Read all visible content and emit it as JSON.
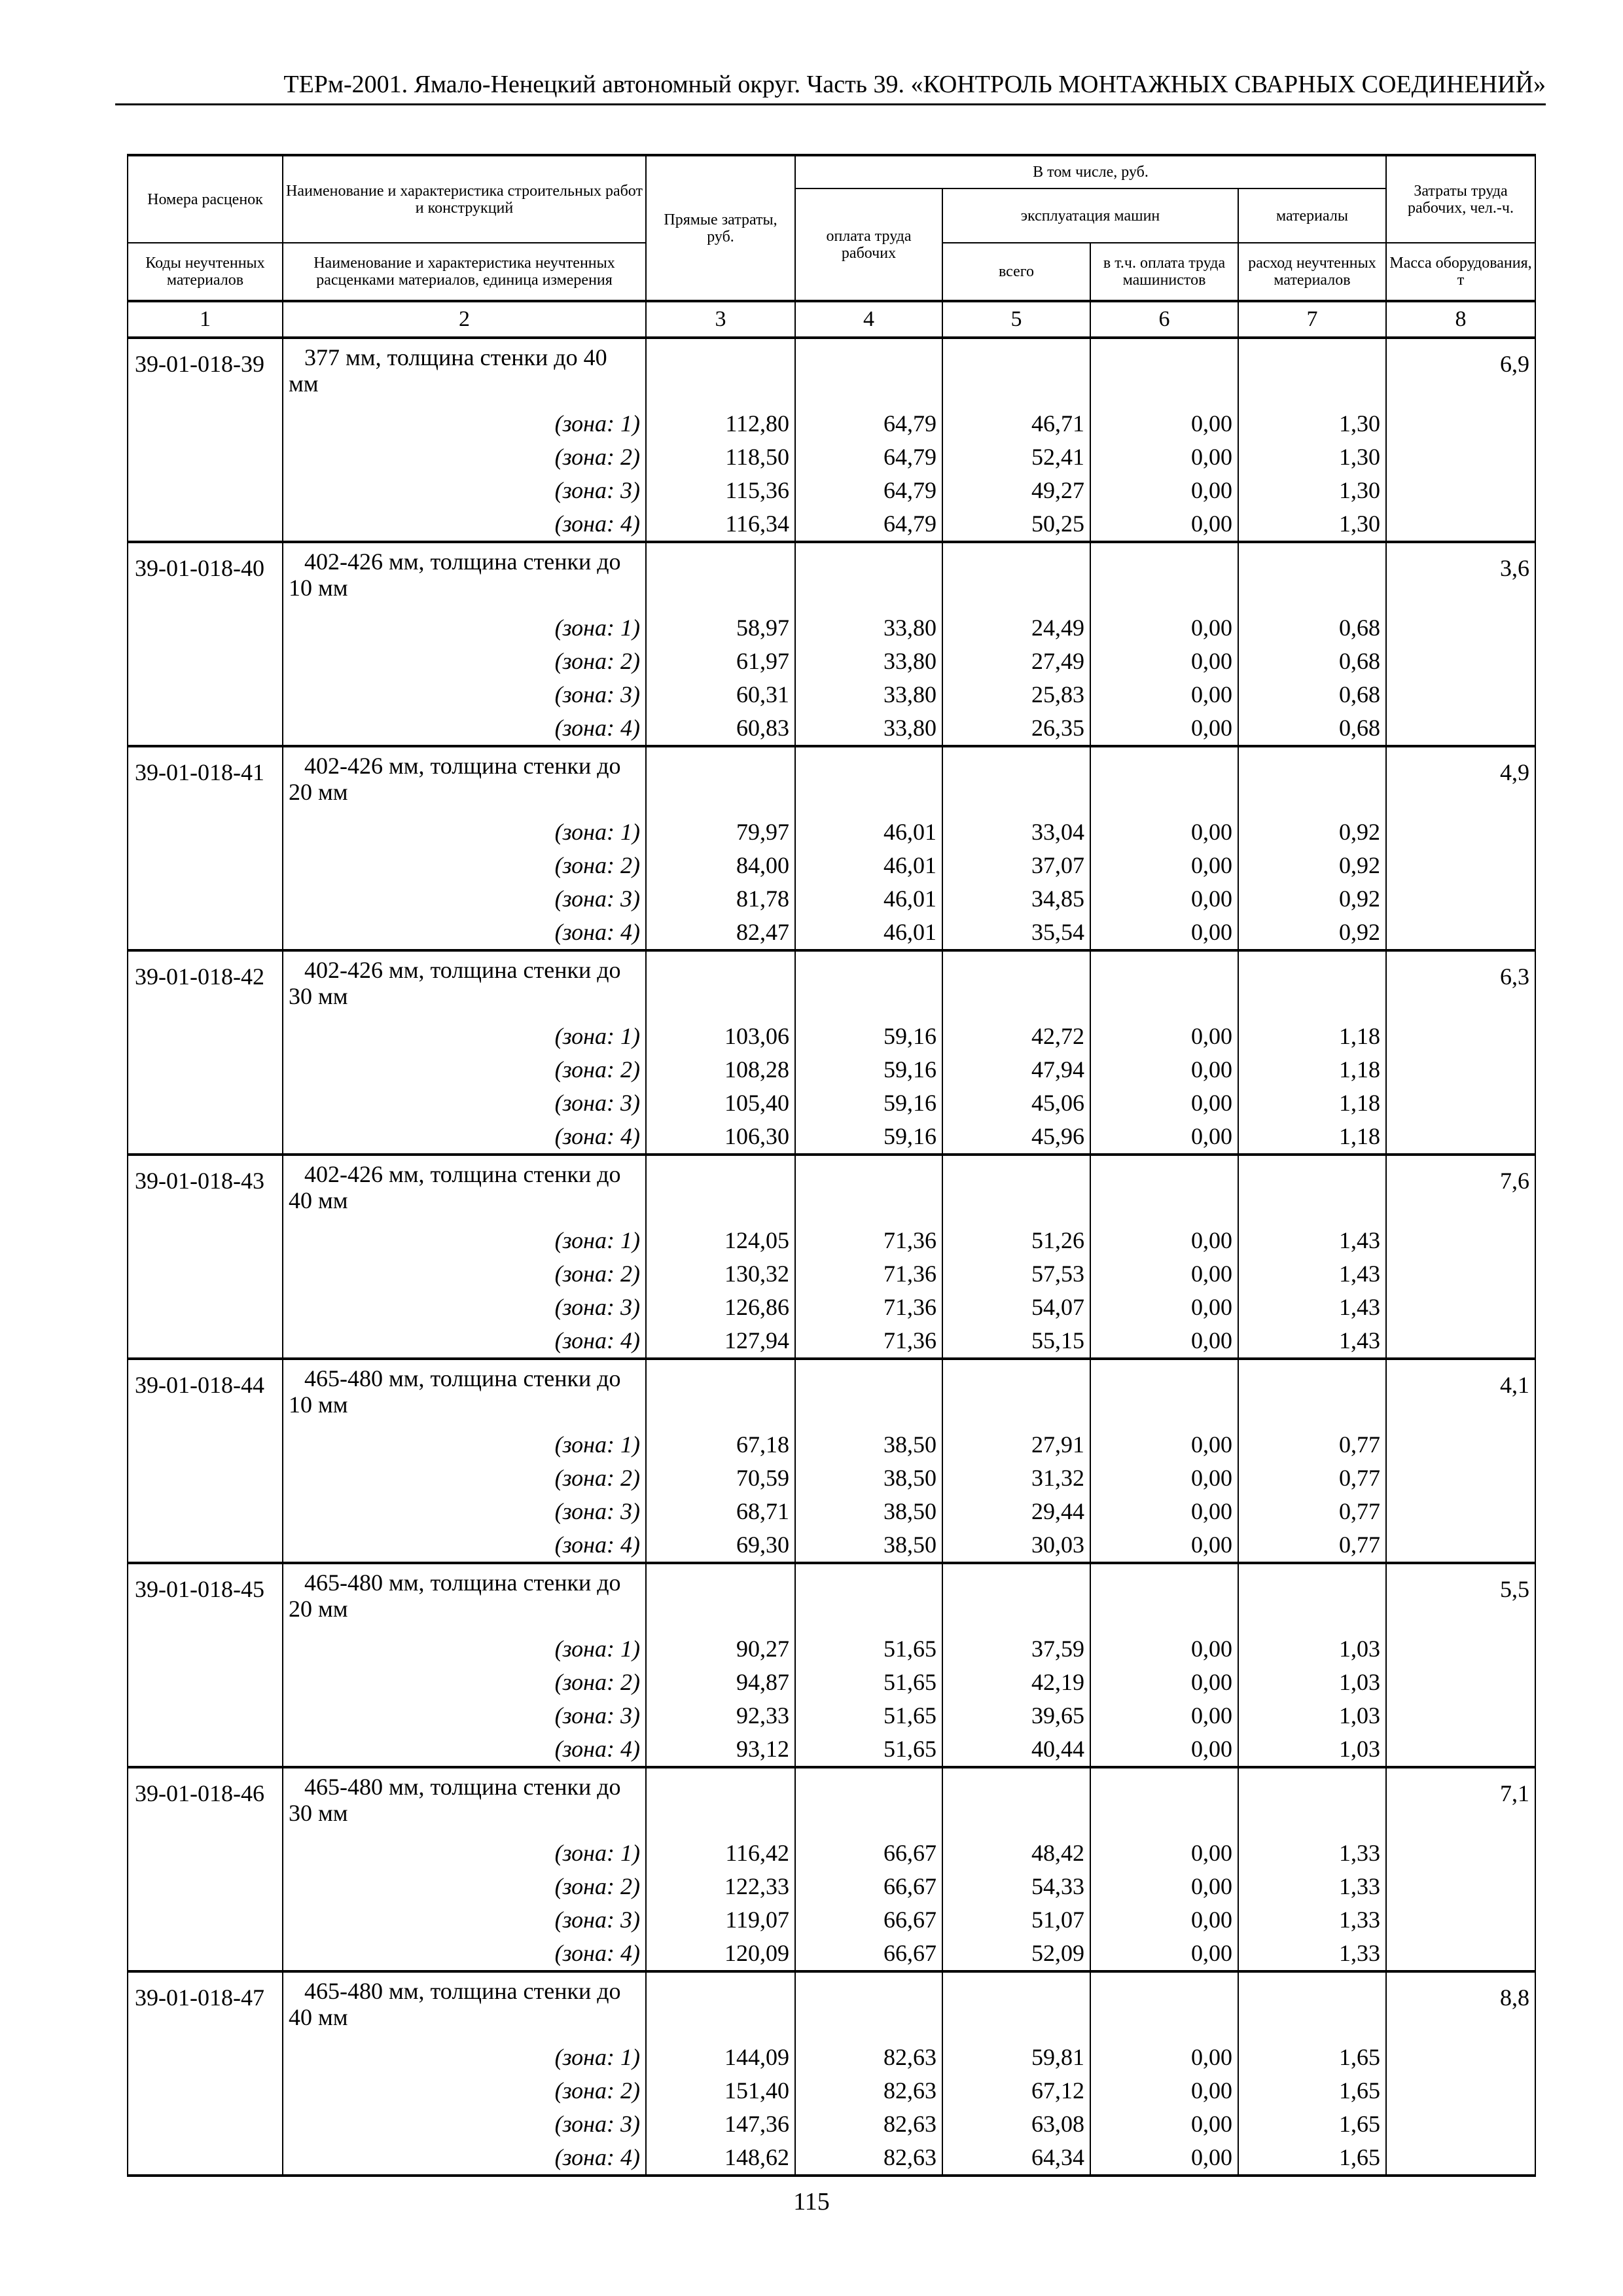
{
  "running_header": "ТЕРм-2001. Ямало-Ненецкий автономный округ. Часть 39. «КОНТРОЛЬ МОНТАЖНЫХ СВАРНЫХ СОЕДИНЕНИЙ»",
  "page_number": "115",
  "table": {
    "headers": {
      "col1_top": "Номера расценок",
      "col1_bottom": "Коды неучтенных материалов",
      "col2_top": "Наименование и характеристика строительных работ и конструкций",
      "col2_bottom": "Наименование и характеристика неучтенных расценками материалов, единица измерения",
      "col3": "Прямые затраты, руб.",
      "group": "В том числе, руб.",
      "col4": "оплата труда рабочих",
      "machines": "эксплуатация машин",
      "col5": "всего",
      "col6": "в т.ч. оплата труда машинистов",
      "materials": "материалы",
      "col7": "расход неучтенных материалов",
      "col8_top": "Затраты труда рабочих, чел.-ч.",
      "col8_bottom": "Масса оборудования, т",
      "numbers": [
        "1",
        "2",
        "3",
        "4",
        "5",
        "6",
        "7",
        "8"
      ]
    },
    "groups": [
      {
        "code": "39-01-018-39",
        "title": "377 мм, толщина стенки до 40 мм",
        "labor_hours": "6,9",
        "zones": [
          [
            "(зона: 1)",
            "112,80",
            "64,79",
            "46,71",
            "0,00",
            "1,30"
          ],
          [
            "(зона: 2)",
            "118,50",
            "64,79",
            "52,41",
            "0,00",
            "1,30"
          ],
          [
            "(зона: 3)",
            "115,36",
            "64,79",
            "49,27",
            "0,00",
            "1,30"
          ],
          [
            "(зона: 4)",
            "116,34",
            "64,79",
            "50,25",
            "0,00",
            "1,30"
          ]
        ]
      },
      {
        "code": "39-01-018-40",
        "title": "402-426 мм, толщина стенки до 10 мм",
        "labor_hours": "3,6",
        "zones": [
          [
            "(зона: 1)",
            "58,97",
            "33,80",
            "24,49",
            "0,00",
            "0,68"
          ],
          [
            "(зона: 2)",
            "61,97",
            "33,80",
            "27,49",
            "0,00",
            "0,68"
          ],
          [
            "(зона: 3)",
            "60,31",
            "33,80",
            "25,83",
            "0,00",
            "0,68"
          ],
          [
            "(зона: 4)",
            "60,83",
            "33,80",
            "26,35",
            "0,00",
            "0,68"
          ]
        ]
      },
      {
        "code": "39-01-018-41",
        "title": "402-426 мм, толщина стенки до 20 мм",
        "labor_hours": "4,9",
        "zones": [
          [
            "(зона: 1)",
            "79,97",
            "46,01",
            "33,04",
            "0,00",
            "0,92"
          ],
          [
            "(зона: 2)",
            "84,00",
            "46,01",
            "37,07",
            "0,00",
            "0,92"
          ],
          [
            "(зона: 3)",
            "81,78",
            "46,01",
            "34,85",
            "0,00",
            "0,92"
          ],
          [
            "(зона: 4)",
            "82,47",
            "46,01",
            "35,54",
            "0,00",
            "0,92"
          ]
        ]
      },
      {
        "code": "39-01-018-42",
        "title": "402-426 мм, толщина стенки до 30 мм",
        "labor_hours": "6,3",
        "zones": [
          [
            "(зона: 1)",
            "103,06",
            "59,16",
            "42,72",
            "0,00",
            "1,18"
          ],
          [
            "(зона: 2)",
            "108,28",
            "59,16",
            "47,94",
            "0,00",
            "1,18"
          ],
          [
            "(зона: 3)",
            "105,40",
            "59,16",
            "45,06",
            "0,00",
            "1,18"
          ],
          [
            "(зона: 4)",
            "106,30",
            "59,16",
            "45,96",
            "0,00",
            "1,18"
          ]
        ]
      },
      {
        "code": "39-01-018-43",
        "title": "402-426 мм, толщина стенки до 40 мм",
        "labor_hours": "7,6",
        "zones": [
          [
            "(зона: 1)",
            "124,05",
            "71,36",
            "51,26",
            "0,00",
            "1,43"
          ],
          [
            "(зона: 2)",
            "130,32",
            "71,36",
            "57,53",
            "0,00",
            "1,43"
          ],
          [
            "(зона: 3)",
            "126,86",
            "71,36",
            "54,07",
            "0,00",
            "1,43"
          ],
          [
            "(зона: 4)",
            "127,94",
            "71,36",
            "55,15",
            "0,00",
            "1,43"
          ]
        ]
      },
      {
        "code": "39-01-018-44",
        "title": "465-480 мм, толщина стенки до 10 мм",
        "labor_hours": "4,1",
        "zones": [
          [
            "(зона: 1)",
            "67,18",
            "38,50",
            "27,91",
            "0,00",
            "0,77"
          ],
          [
            "(зона: 2)",
            "70,59",
            "38,50",
            "31,32",
            "0,00",
            "0,77"
          ],
          [
            "(зона: 3)",
            "68,71",
            "38,50",
            "29,44",
            "0,00",
            "0,77"
          ],
          [
            "(зона: 4)",
            "69,30",
            "38,50",
            "30,03",
            "0,00",
            "0,77"
          ]
        ]
      },
      {
        "code": "39-01-018-45",
        "title": "465-480 мм, толщина стенки до 20 мм",
        "labor_hours": "5,5",
        "zones": [
          [
            "(зона: 1)",
            "90,27",
            "51,65",
            "37,59",
            "0,00",
            "1,03"
          ],
          [
            "(зона: 2)",
            "94,87",
            "51,65",
            "42,19",
            "0,00",
            "1,03"
          ],
          [
            "(зона: 3)",
            "92,33",
            "51,65",
            "39,65",
            "0,00",
            "1,03"
          ],
          [
            "(зона: 4)",
            "93,12",
            "51,65",
            "40,44",
            "0,00",
            "1,03"
          ]
        ]
      },
      {
        "code": "39-01-018-46",
        "title": "465-480 мм, толщина стенки до 30 мм",
        "labor_hours": "7,1",
        "zones": [
          [
            "(зона: 1)",
            "116,42",
            "66,67",
            "48,42",
            "0,00",
            "1,33"
          ],
          [
            "(зона: 2)",
            "122,33",
            "66,67",
            "54,33",
            "0,00",
            "1,33"
          ],
          [
            "(зона: 3)",
            "119,07",
            "66,67",
            "51,07",
            "0,00",
            "1,33"
          ],
          [
            "(зона: 4)",
            "120,09",
            "66,67",
            "52,09",
            "0,00",
            "1,33"
          ]
        ]
      },
      {
        "code": "39-01-018-47",
        "title": "465-480 мм, толщина стенки до 40 мм",
        "labor_hours": "8,8",
        "zones": [
          [
            "(зона: 1)",
            "144,09",
            "82,63",
            "59,81",
            "0,00",
            "1,65"
          ],
          [
            "(зона: 2)",
            "151,40",
            "82,63",
            "67,12",
            "0,00",
            "1,65"
          ],
          [
            "(зона: 3)",
            "147,36",
            "82,63",
            "63,08",
            "0,00",
            "1,65"
          ],
          [
            "(зона: 4)",
            "148,62",
            "82,63",
            "64,34",
            "0,00",
            "1,65"
          ]
        ]
      }
    ]
  }
}
